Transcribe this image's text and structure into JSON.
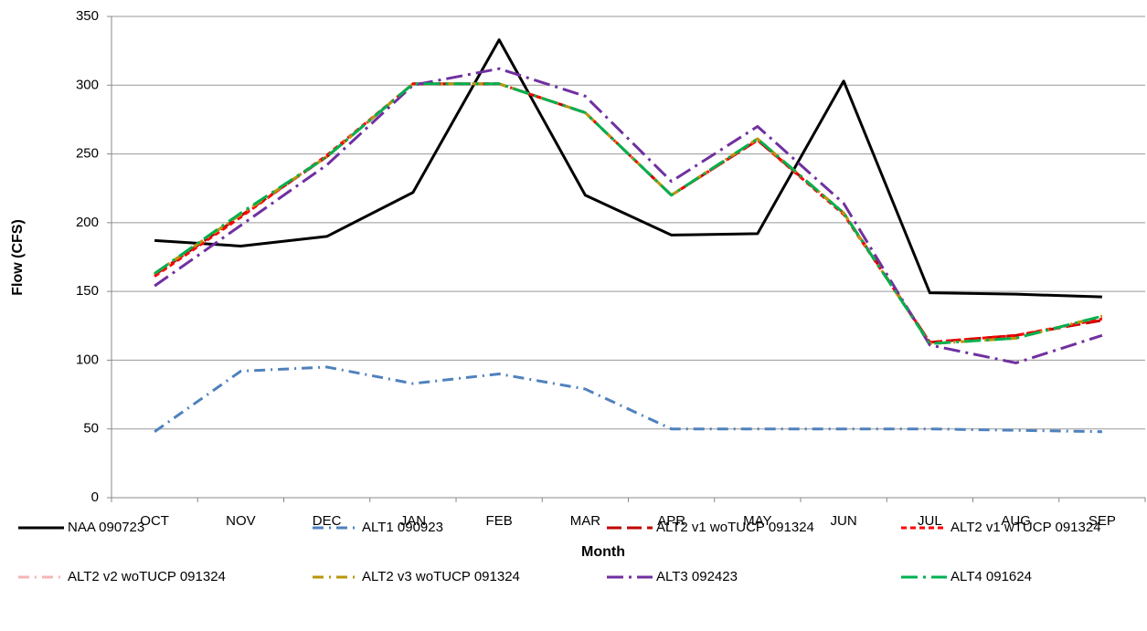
{
  "chart_data": {
    "type": "line",
    "x_label": "Month",
    "y_label": "Flow (CFS)",
    "categories": [
      "OCT",
      "NOV",
      "DEC",
      "JAN",
      "FEB",
      "MAR",
      "APR",
      "MAY",
      "JUN",
      "JUL",
      "AUG",
      "SEP"
    ],
    "ylim": [
      0,
      350
    ],
    "yticks": [
      0,
      50,
      100,
      150,
      200,
      250,
      300,
      350
    ],
    "grid": true,
    "legend": "bottom",
    "series": [
      {
        "name": "NAA 090723",
        "color": "#000000",
        "dash": "solid",
        "values": [
          187,
          183,
          190,
          222,
          333,
          220,
          191,
          192,
          303,
          149,
          148,
          146
        ]
      },
      {
        "name": "ALT1 090923",
        "color": "#4f81bd",
        "dash": "dashdot",
        "values": [
          48,
          92,
          95,
          83,
          90,
          79,
          50,
          50,
          50,
          50,
          49,
          48
        ]
      },
      {
        "name": "ALT2 v1 woTUCP 091324",
        "color": "#c00000",
        "dash": "longdash",
        "values": [
          162,
          205,
          248,
          301,
          301,
          280,
          220,
          260,
          207,
          113,
          118,
          129
        ]
      },
      {
        "name": "ALT2 v1 wTUCP 091324",
        "color": "#ff0000",
        "dash": "dash",
        "values": [
          161,
          204,
          249,
          301,
          301,
          280,
          220,
          260,
          206,
          113,
          118,
          130
        ]
      },
      {
        "name": "ALT2 v2 woTUCP 091324",
        "color": "#f4b6b6",
        "dash": "dashdot",
        "values": [
          163,
          206,
          248,
          301,
          301,
          280,
          220,
          261,
          207,
          112,
          116,
          132
        ]
      },
      {
        "name": "ALT2 v3 woTUCP 091324",
        "color": "#b8960c",
        "dash": "dashdot",
        "values": [
          163,
          206,
          248,
          301,
          301,
          280,
          220,
          261,
          207,
          112,
          116,
          132
        ]
      },
      {
        "name": "ALT3 092423",
        "color": "#7030a0",
        "dash": "longdashdot",
        "values": [
          154,
          198,
          242,
          300,
          312,
          292,
          230,
          270,
          214,
          111,
          98,
          118
        ]
      },
      {
        "name": "ALT4 091624",
        "color": "#00b050",
        "dash": "longdashdot",
        "values": [
          163,
          207,
          248,
          301,
          301,
          280,
          220,
          261,
          207,
          112,
          116,
          132
        ]
      }
    ]
  }
}
